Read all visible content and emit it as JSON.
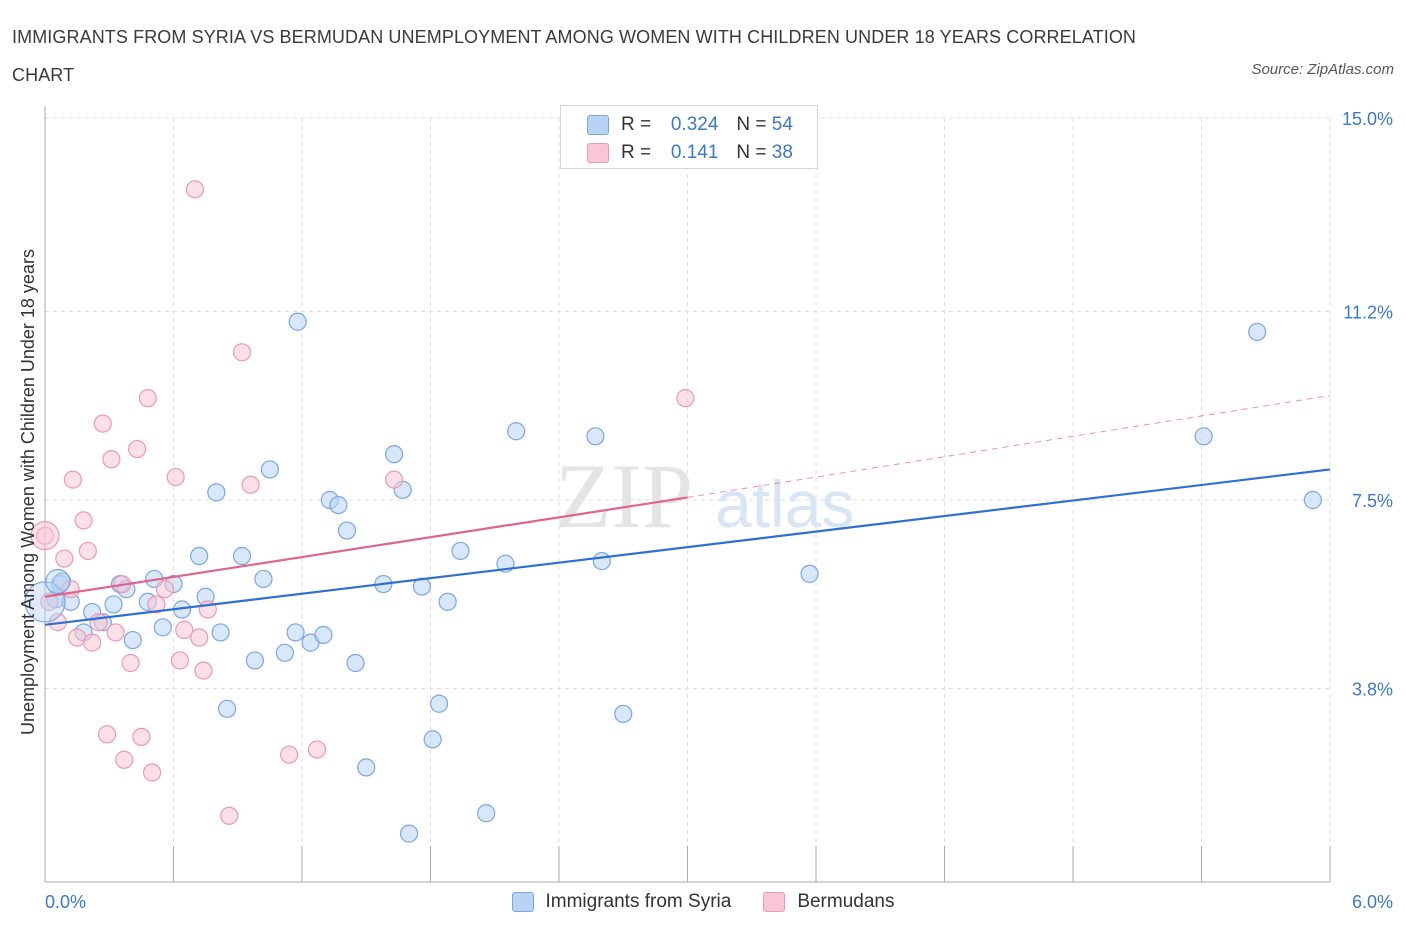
{
  "title": "IMMIGRANTS FROM SYRIA VS BERMUDAN UNEMPLOYMENT AMONG WOMEN WITH CHILDREN UNDER 18 YEARS CORRELATION CHART",
  "source": "Source: ZipAtlas.com",
  "watermark": {
    "zip": "ZIP",
    "atlas": "atlas"
  },
  "legend": {
    "rows": [
      {
        "r_label": "R =",
        "r_value": "0.324",
        "n_label": "N =",
        "n_value": "54"
      },
      {
        "r_label": "R =",
        "r_value": "0.141",
        "n_label": "N =",
        "n_value": "38"
      }
    ]
  },
  "colors": {
    "syria_fill": "#b9d3f5",
    "syria_stroke": "#7aa6e0",
    "syria_line": "#2f6fd1",
    "bermuda_fill": "#f8c6d6",
    "bermuda_stroke": "#ec98b3",
    "bermuda_line": "#e0648b",
    "grid": "#dedede",
    "tick_label": "#3a78c9"
  },
  "chart_data": {
    "type": "scatter",
    "ylabel": "Unemployment Among Women with Children Under 18 years",
    "xlim": [
      0.0,
      6.0
    ],
    "ylim": [
      0.0,
      15.0
    ],
    "x_tick_labels": [
      "0.0%",
      "6.0%"
    ],
    "y_ticks": [
      3.8,
      7.5,
      11.2,
      15.0
    ],
    "y_tick_labels": [
      "3.8%",
      "7.5%",
      "11.2%",
      "15.0%"
    ],
    "grid": true,
    "legend_position": "top-center",
    "series": [
      {
        "name": "Immigrants from Syria",
        "R": 0.324,
        "N": 54,
        "trend": {
          "x0": 0.0,
          "y0": 5.05,
          "x1": 6.0,
          "y1": 8.1
        },
        "points": [
          [
            0.05,
            5.55
          ],
          [
            0.07,
            5.85
          ],
          [
            0.08,
            5.9
          ],
          [
            0.12,
            5.5
          ],
          [
            0.18,
            4.9
          ],
          [
            0.22,
            5.3
          ],
          [
            0.27,
            5.1
          ],
          [
            0.32,
            5.45
          ],
          [
            0.35,
            5.85
          ],
          [
            0.38,
            5.75
          ],
          [
            0.41,
            4.75
          ],
          [
            0.48,
            5.5
          ],
          [
            0.51,
            5.95
          ],
          [
            0.55,
            5.0
          ],
          [
            0.6,
            5.85
          ],
          [
            0.64,
            5.35
          ],
          [
            0.72,
            6.4
          ],
          [
            0.75,
            5.6
          ],
          [
            0.82,
            4.9
          ],
          [
            0.8,
            7.65
          ],
          [
            0.85,
            3.4
          ],
          [
            0.92,
            6.4
          ],
          [
            0.98,
            4.35
          ],
          [
            1.02,
            5.95
          ],
          [
            1.05,
            8.1
          ],
          [
            1.12,
            4.5
          ],
          [
            1.17,
            4.9
          ],
          [
            1.18,
            11.0
          ],
          [
            1.24,
            4.7
          ],
          [
            1.3,
            4.85
          ],
          [
            1.33,
            7.5
          ],
          [
            1.37,
            7.4
          ],
          [
            1.41,
            6.9
          ],
          [
            1.45,
            4.3
          ],
          [
            1.5,
            2.25
          ],
          [
            1.58,
            5.85
          ],
          [
            1.63,
            8.4
          ],
          [
            1.67,
            7.7
          ],
          [
            1.7,
            0.95
          ],
          [
            1.76,
            5.8
          ],
          [
            1.81,
            2.8
          ],
          [
            1.84,
            3.5
          ],
          [
            1.88,
            5.5
          ],
          [
            1.94,
            6.5
          ],
          [
            2.06,
            1.35
          ],
          [
            2.15,
            6.25
          ],
          [
            2.2,
            8.85
          ],
          [
            2.57,
            8.75
          ],
          [
            2.6,
            6.3
          ],
          [
            2.7,
            3.3
          ],
          [
            3.57,
            6.05
          ],
          [
            5.41,
            8.75
          ],
          [
            5.66,
            10.8
          ],
          [
            5.92,
            7.5
          ]
        ]
      },
      {
        "name": "Bermudans",
        "R": 0.141,
        "N": 38,
        "trend": {
          "x0": 0.0,
          "y0": 5.6,
          "x1": 3.0,
          "y1": 7.55
        },
        "trend_dashed": {
          "x0": 3.0,
          "y0": 7.55,
          "x1": 6.0,
          "y1": 9.55
        },
        "points": [
          [
            0.0,
            6.8
          ],
          [
            0.02,
            5.5
          ],
          [
            0.06,
            5.1
          ],
          [
            0.09,
            6.35
          ],
          [
            0.12,
            5.75
          ],
          [
            0.13,
            7.9
          ],
          [
            0.15,
            4.8
          ],
          [
            0.18,
            7.1
          ],
          [
            0.2,
            6.5
          ],
          [
            0.22,
            4.7
          ],
          [
            0.25,
            5.1
          ],
          [
            0.27,
            9.0
          ],
          [
            0.29,
            2.9
          ],
          [
            0.31,
            8.3
          ],
          [
            0.33,
            4.9
          ],
          [
            0.36,
            5.85
          ],
          [
            0.37,
            2.4
          ],
          [
            0.4,
            4.3
          ],
          [
            0.43,
            8.5
          ],
          [
            0.45,
            2.85
          ],
          [
            0.48,
            9.5
          ],
          [
            0.5,
            2.15
          ],
          [
            0.52,
            5.45
          ],
          [
            0.56,
            5.75
          ],
          [
            0.61,
            7.95
          ],
          [
            0.63,
            4.35
          ],
          [
            0.65,
            4.95
          ],
          [
            0.7,
            13.6
          ],
          [
            0.72,
            4.8
          ],
          [
            0.74,
            4.15
          ],
          [
            0.76,
            5.35
          ],
          [
            0.86,
            1.3
          ],
          [
            0.92,
            10.4
          ],
          [
            0.96,
            7.8
          ],
          [
            1.14,
            2.5
          ],
          [
            1.27,
            2.6
          ],
          [
            1.63,
            7.9
          ],
          [
            2.99,
            9.5
          ]
        ]
      }
    ]
  }
}
